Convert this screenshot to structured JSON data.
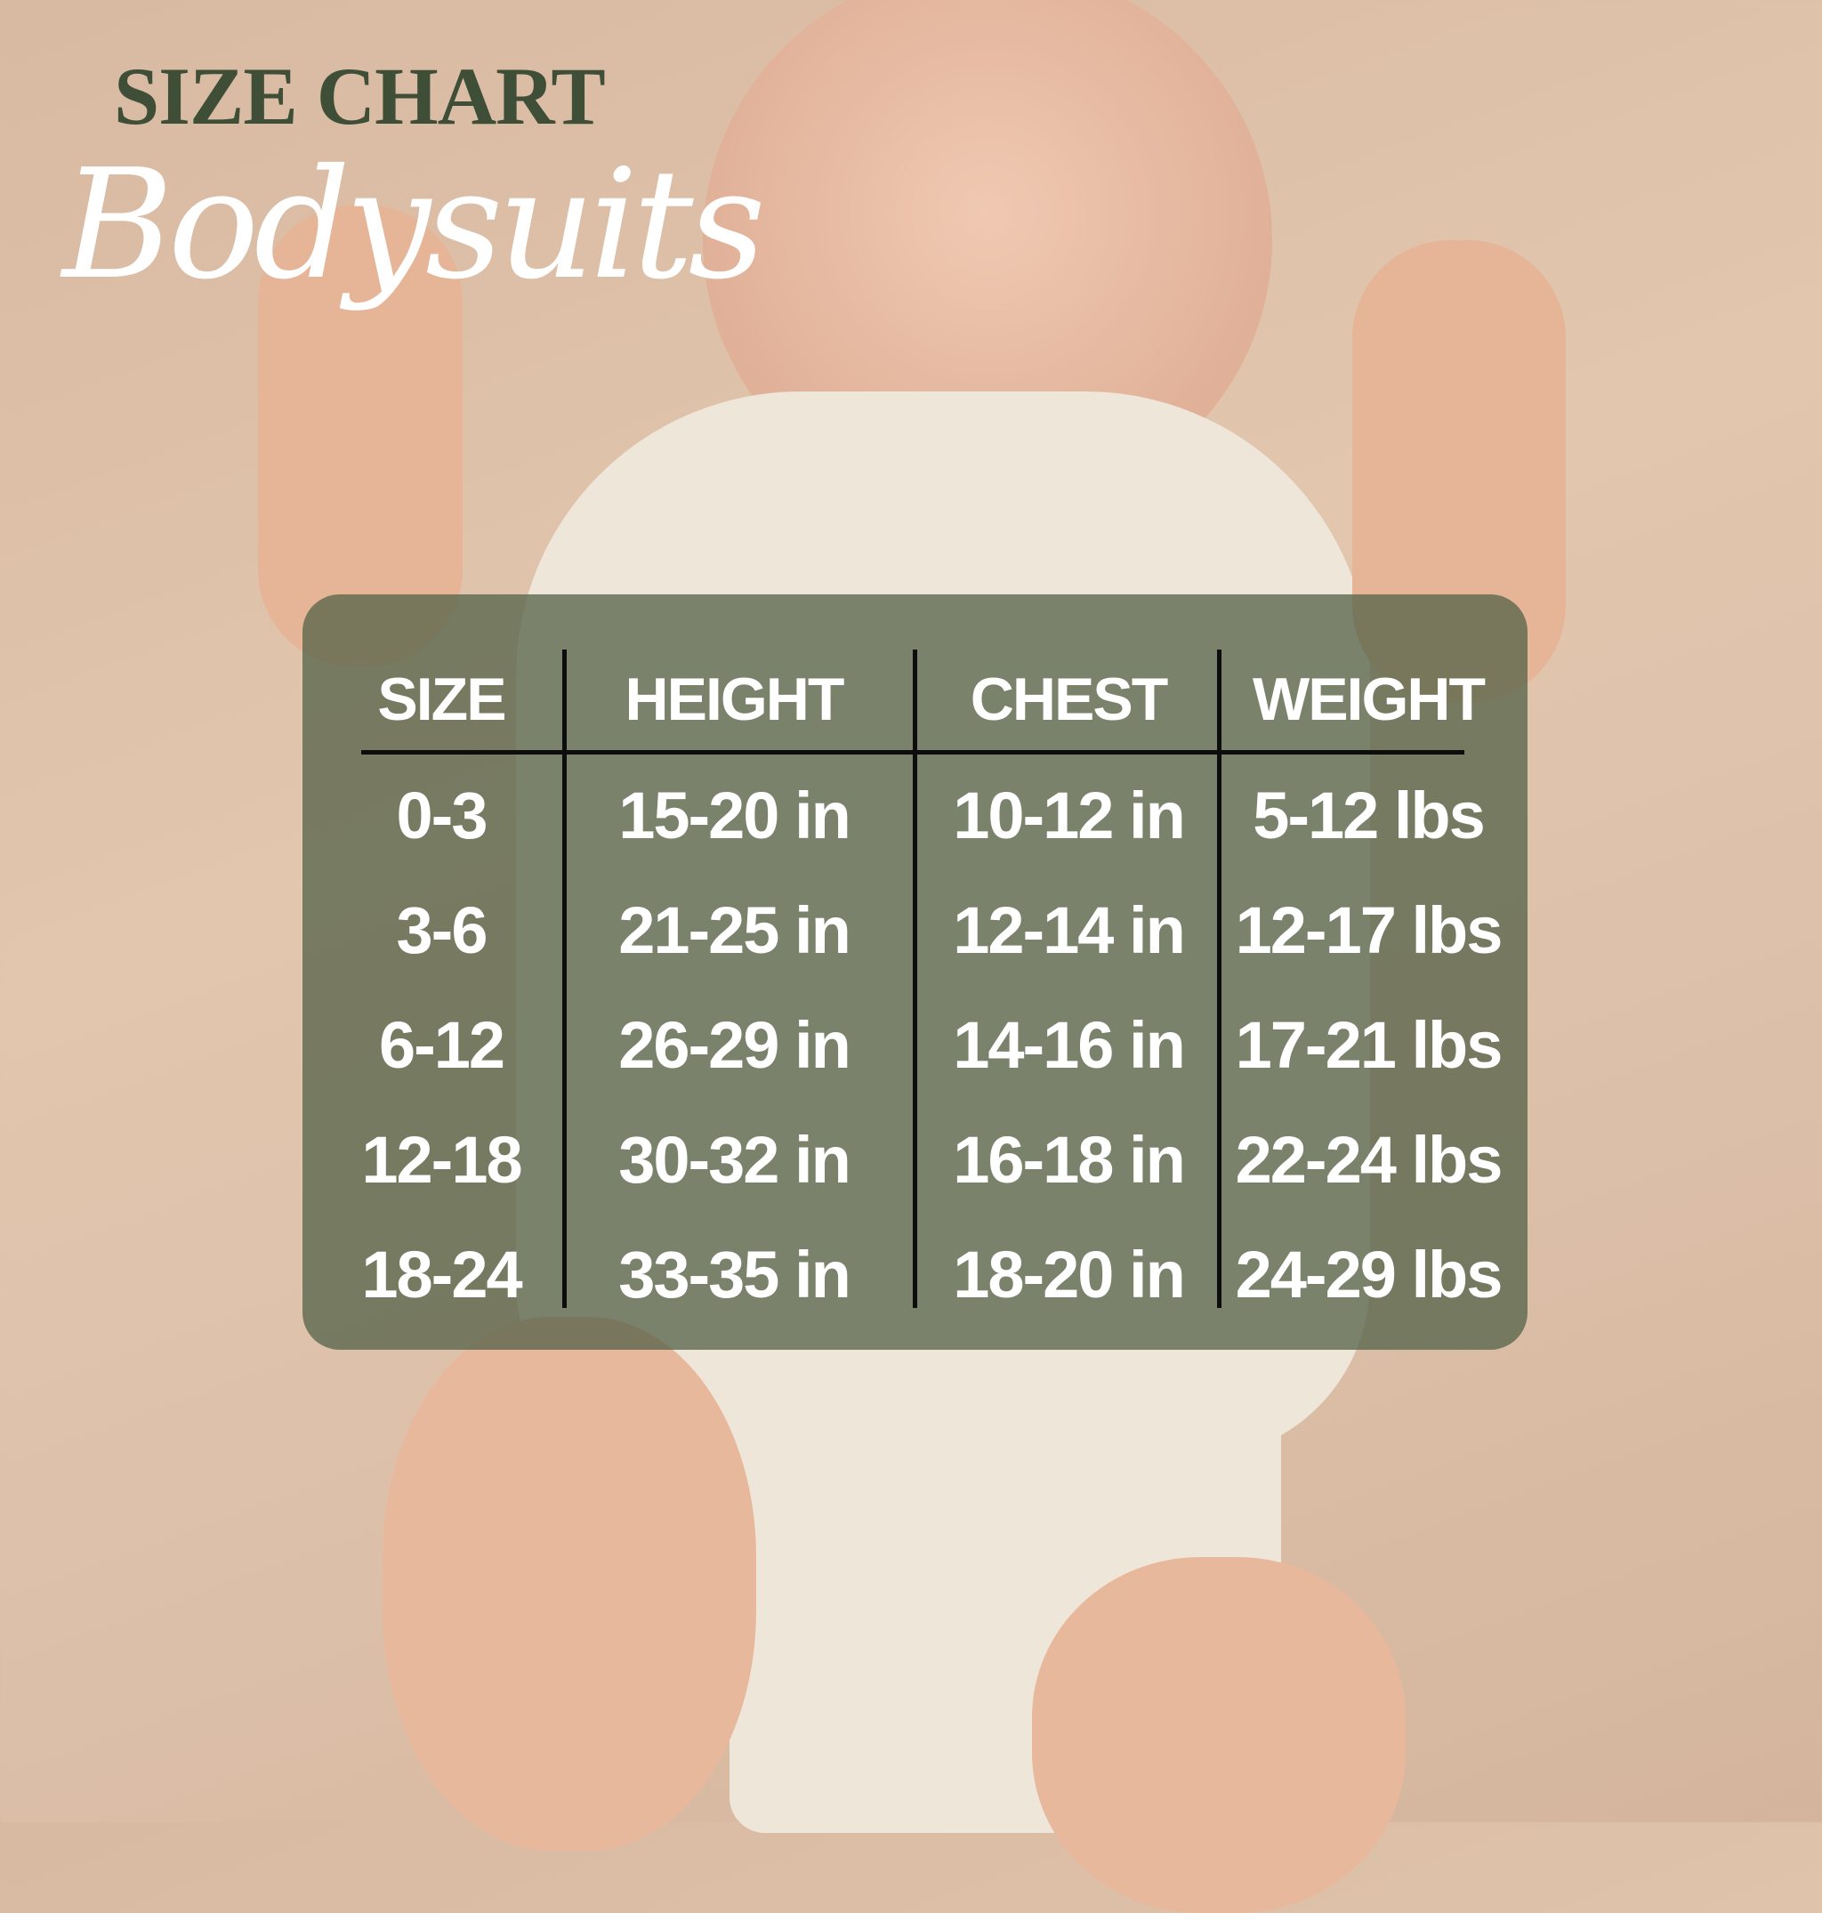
{
  "title": "SIZE CHART",
  "subtitle": "Bodysuits",
  "colors": {
    "title": "#3f4e37",
    "panel": "#58654c",
    "text": "#ffffff",
    "lines": "#0d0d0d"
  },
  "table": {
    "headers": [
      "SIZE",
      "HEIGHT",
      "CHEST",
      "WEIGHT"
    ],
    "rows": [
      [
        "0-3",
        "15-20 in",
        "10-12 in",
        "5-12 lbs"
      ],
      [
        "3-6",
        "21-25 in",
        "12-14 in",
        "12-17 lbs"
      ],
      [
        "6-12",
        "26-29 in",
        "14-16 in",
        "17-21 lbs"
      ],
      [
        "12-18",
        "30-32 in",
        "16-18 in",
        "22-24 lbs"
      ],
      [
        "18-24",
        "33-35 in",
        "18-20 in",
        "24-29 lbs"
      ]
    ]
  }
}
